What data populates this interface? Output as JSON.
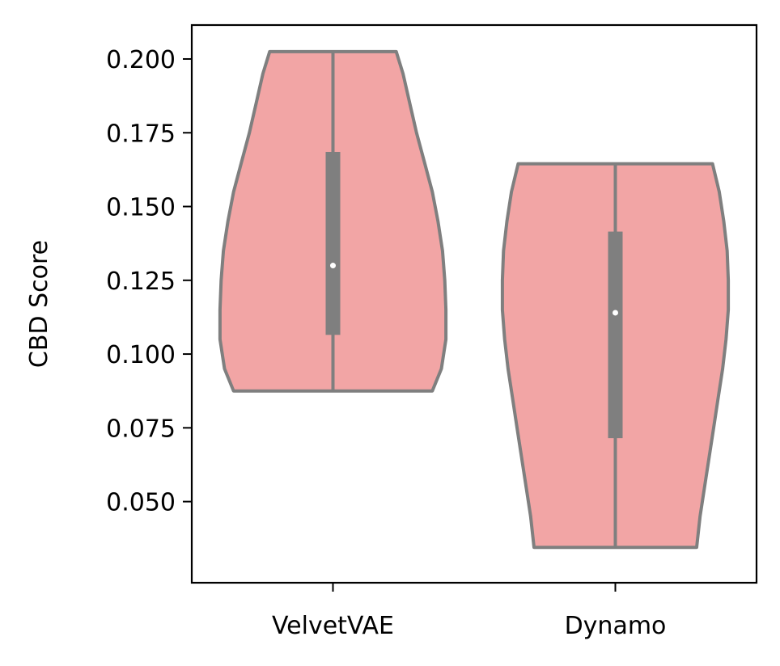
{
  "chart_data": {
    "type": "violin",
    "title": "",
    "xlabel": "",
    "ylabel": "CBD Score",
    "categories": [
      "VelvetVAE",
      "Dynamo"
    ],
    "ylim": [
      0.0225,
      0.2115
    ],
    "yticks": [
      "0.050",
      "0.075",
      "0.100",
      "0.125",
      "0.150",
      "0.175",
      "0.200"
    ],
    "grid": false,
    "fill_color": "#f2a5a5",
    "edge_color": "#7f7f7f",
    "median_color": "#ffffff",
    "violins": [
      {
        "category": "VelvetVAE",
        "min": 0.0875,
        "max": 0.2025,
        "q1": 0.1065,
        "median": 0.13,
        "q3": 0.1685,
        "density": [
          [
            0.0875,
            0.88
          ],
          [
            0.095,
            0.96
          ],
          [
            0.105,
            1.0
          ],
          [
            0.115,
            1.0
          ],
          [
            0.125,
            0.99
          ],
          [
            0.135,
            0.97
          ],
          [
            0.145,
            0.93
          ],
          [
            0.155,
            0.88
          ],
          [
            0.165,
            0.81
          ],
          [
            0.175,
            0.74
          ],
          [
            0.185,
            0.68
          ],
          [
            0.195,
            0.62
          ],
          [
            0.2025,
            0.56
          ]
        ]
      },
      {
        "category": "Dynamo",
        "min": 0.0345,
        "max": 0.1645,
        "q1": 0.0715,
        "median": 0.114,
        "q3": 0.1415,
        "density": [
          [
            0.0345,
            0.72
          ],
          [
            0.045,
            0.75
          ],
          [
            0.055,
            0.79
          ],
          [
            0.065,
            0.83
          ],
          [
            0.075,
            0.87
          ],
          [
            0.085,
            0.91
          ],
          [
            0.095,
            0.95
          ],
          [
            0.105,
            0.98
          ],
          [
            0.115,
            1.0
          ],
          [
            0.125,
            1.0
          ],
          [
            0.135,
            0.99
          ],
          [
            0.145,
            0.96
          ],
          [
            0.155,
            0.92
          ],
          [
            0.1645,
            0.86
          ]
        ]
      }
    ]
  }
}
